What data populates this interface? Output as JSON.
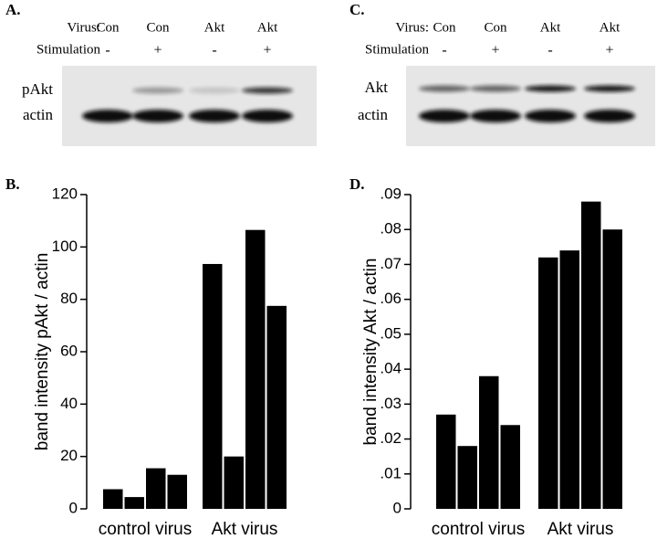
{
  "panels": [
    {
      "letter": "A.",
      "header_labels": [
        "Virus:",
        "Stimulation"
      ],
      "virus": [
        "Con",
        "Con",
        "Akt",
        "Akt"
      ],
      "stimulation": [
        "-",
        "+",
        "-",
        "+"
      ],
      "rows": [
        "pAkt",
        "actin"
      ]
    },
    {
      "letter": "C.",
      "header_labels": [
        "Virus:",
        "Stimulation"
      ],
      "virus": [
        "Con",
        "Con",
        "Akt",
        "Akt"
      ],
      "stimulation": [
        "-",
        "+",
        "-",
        "+"
      ],
      "rows": [
        "Akt",
        "actin"
      ]
    }
  ],
  "chart_data": [
    {
      "type": "bar",
      "panel_letter": "B.",
      "ylabel": "band intensity  pAkt / actin",
      "categories": [
        null,
        null,
        null,
        null,
        null,
        null,
        null,
        null
      ],
      "values": [
        7.5,
        4.5,
        15.5,
        13,
        93.5,
        20,
        106.5,
        77.5
      ],
      "group_labels": [
        "control virus",
        "Akt virus"
      ],
      "color": "#000000",
      "ylim": [
        0,
        120
      ],
      "yticks": [
        0,
        20,
        40,
        60,
        80,
        100,
        120
      ]
    },
    {
      "type": "bar",
      "panel_letter": "D.",
      "ylabel": "band intensity  Akt / actin",
      "categories": [
        null,
        null,
        null,
        null,
        null,
        null,
        null,
        null
      ],
      "values": [
        0.027,
        0.018,
        0.038,
        0.024,
        0.072,
        0.074,
        0.088,
        0.08
      ],
      "group_labels": [
        "control virus",
        "Akt virus"
      ],
      "color": "#000000",
      "ylim": [
        0,
        0.09
      ],
      "yticks": [
        0,
        {
          "value": 0.01,
          "label": ".01"
        },
        {
          "value": 0.02,
          "label": ".02"
        },
        {
          "value": 0.03,
          "label": ".03"
        },
        {
          "value": 0.04,
          "label": ".04"
        },
        {
          "value": 0.05,
          "label": ".05"
        },
        {
          "value": 0.06,
          "label": ".06"
        },
        {
          "value": 0.07,
          "label": ".07"
        },
        {
          "value": 0.08,
          "label": ".08"
        },
        {
          "value": 0.09,
          "label": ".09"
        }
      ]
    }
  ]
}
